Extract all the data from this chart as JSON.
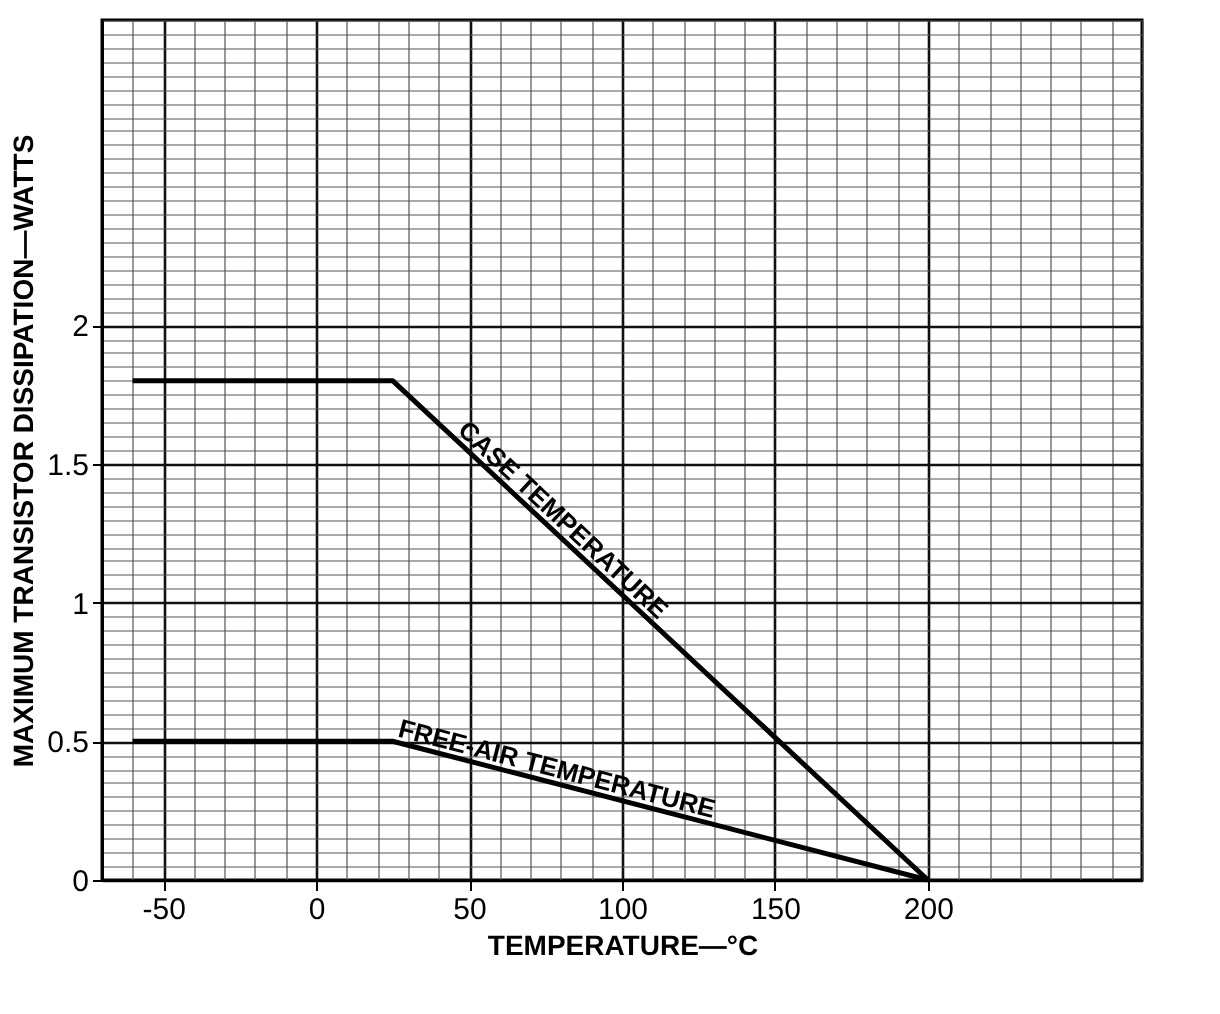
{
  "chart_data": {
    "type": "line",
    "xlabel": "TEMPERATURE—°C",
    "ylabel": "MAXIMUM TRANSISTOR DISSIPATION—WATTS",
    "xlim": [
      -70,
      270
    ],
    "xticks": [
      -50,
      0,
      50,
      100,
      150,
      200
    ],
    "ylim": [
      0,
      3.1
    ],
    "yticks": [
      0,
      0.5,
      1,
      1.5,
      2
    ],
    "grid": true,
    "legend": false,
    "series": [
      {
        "name": "CASE TEMPERATURE",
        "color": "#000000",
        "x": [
          -60,
          25,
          200
        ],
        "values": [
          1.8,
          1.8,
          0
        ]
      },
      {
        "name": "FREE-AIR TEMPERATURE",
        "color": "#000000",
        "x": [
          -60,
          25,
          200
        ],
        "values": [
          0.5,
          0.5,
          0
        ]
      }
    ]
  }
}
